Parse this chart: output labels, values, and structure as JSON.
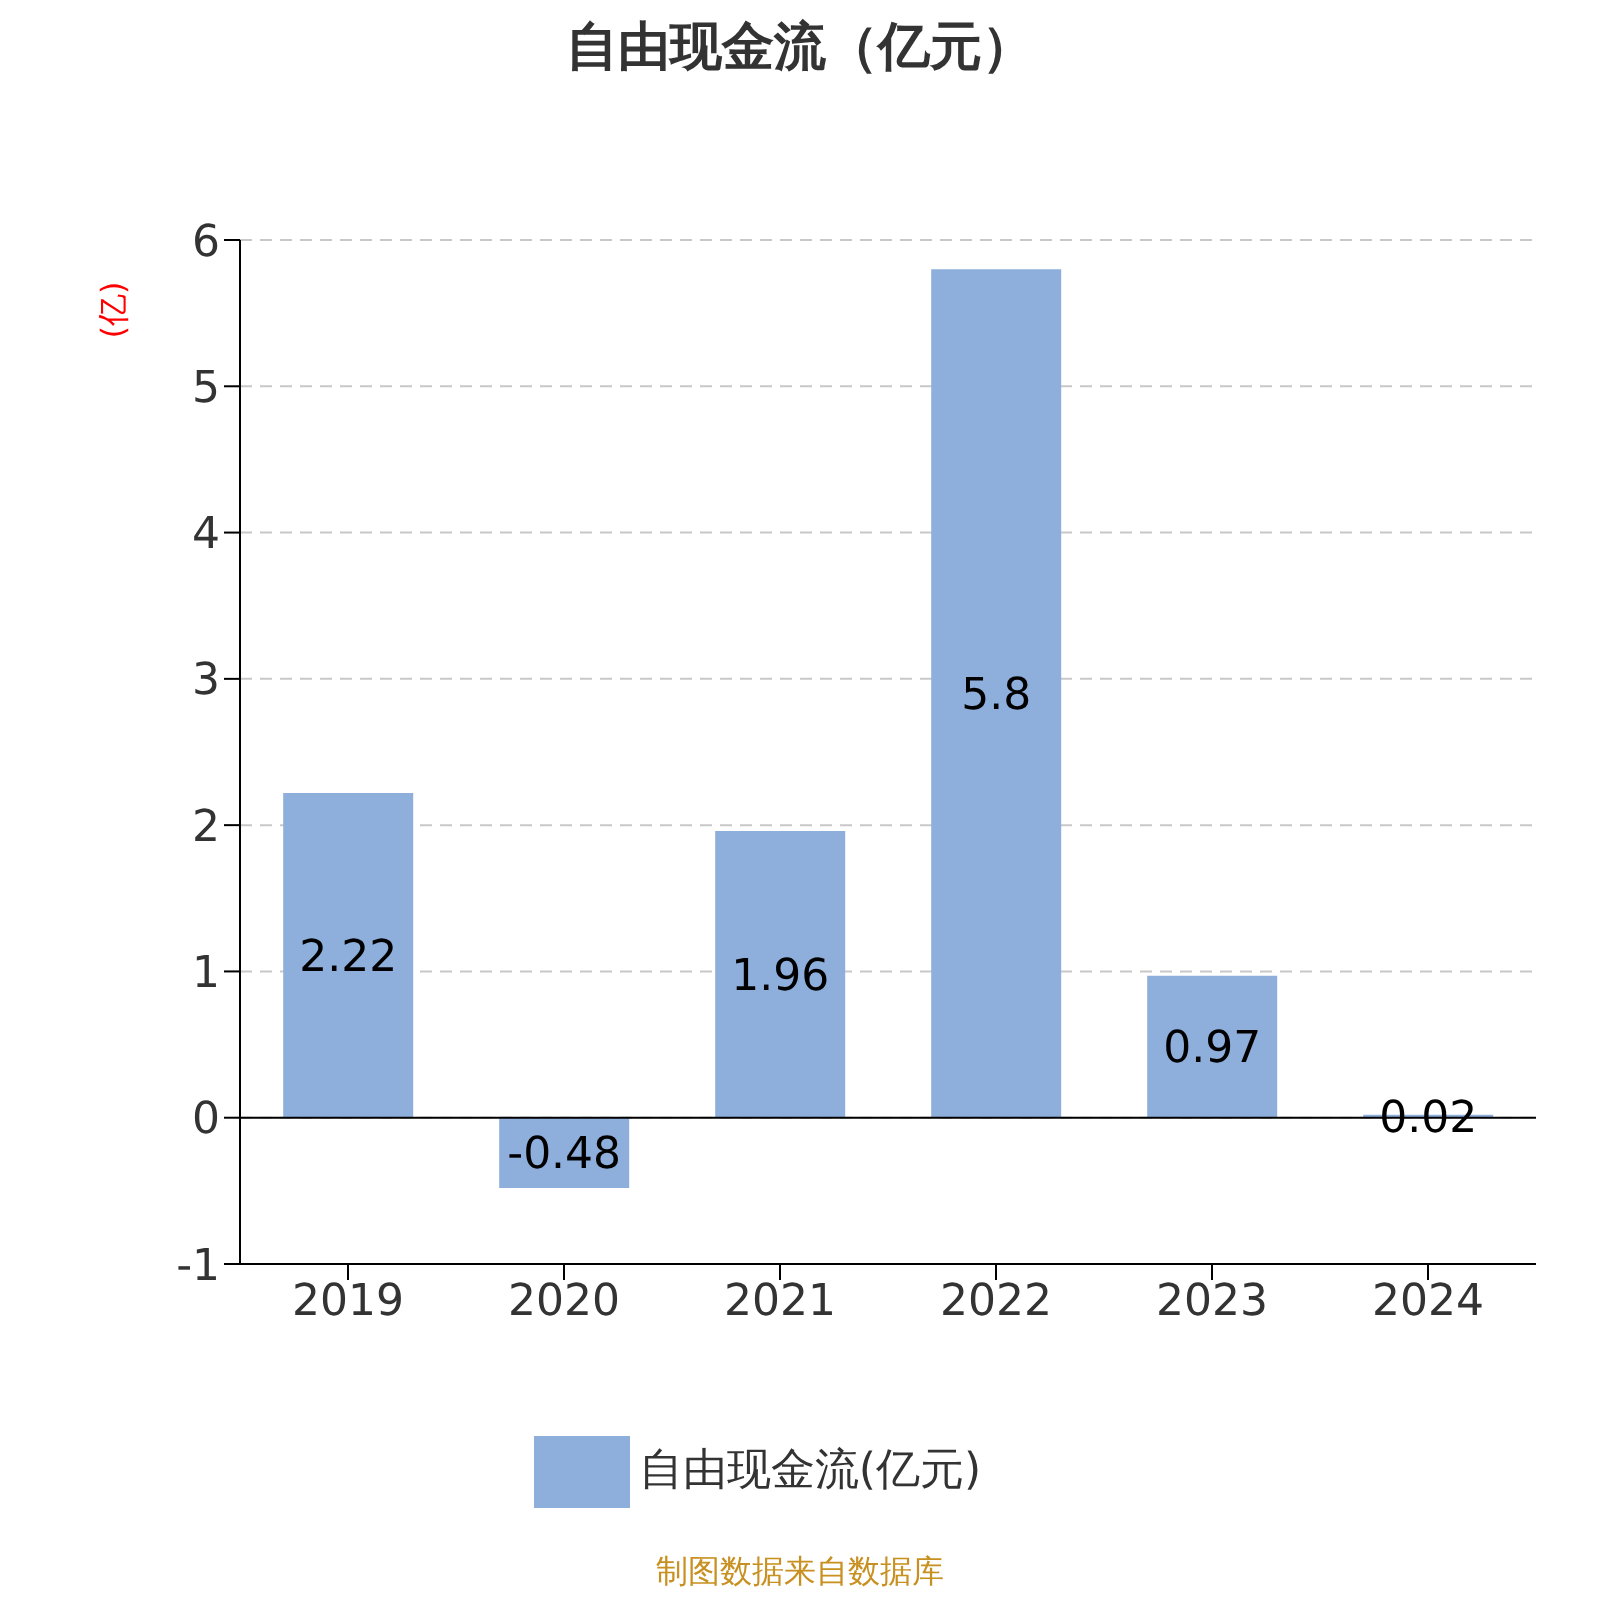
{
  "chart_data": {
    "type": "bar",
    "title": "自由现金流（亿元）",
    "ylabel": "(亿)",
    "categories": [
      "2019",
      "2020",
      "2021",
      "2022",
      "2023",
      "2024"
    ],
    "series": [
      {
        "name": "自由现金流(亿元)",
        "color": "#8eaedb",
        "values": [
          2.22,
          -0.48,
          1.96,
          5.8,
          0.97,
          0.02
        ]
      }
    ],
    "ylim": [
      -1,
      6
    ],
    "yticks": [
      -1,
      0,
      1,
      2,
      3,
      4,
      5,
      6
    ],
    "grid": "y",
    "legend": "bottom",
    "data_labels": true,
    "annotations": [
      "制图数据来自数据库"
    ]
  }
}
